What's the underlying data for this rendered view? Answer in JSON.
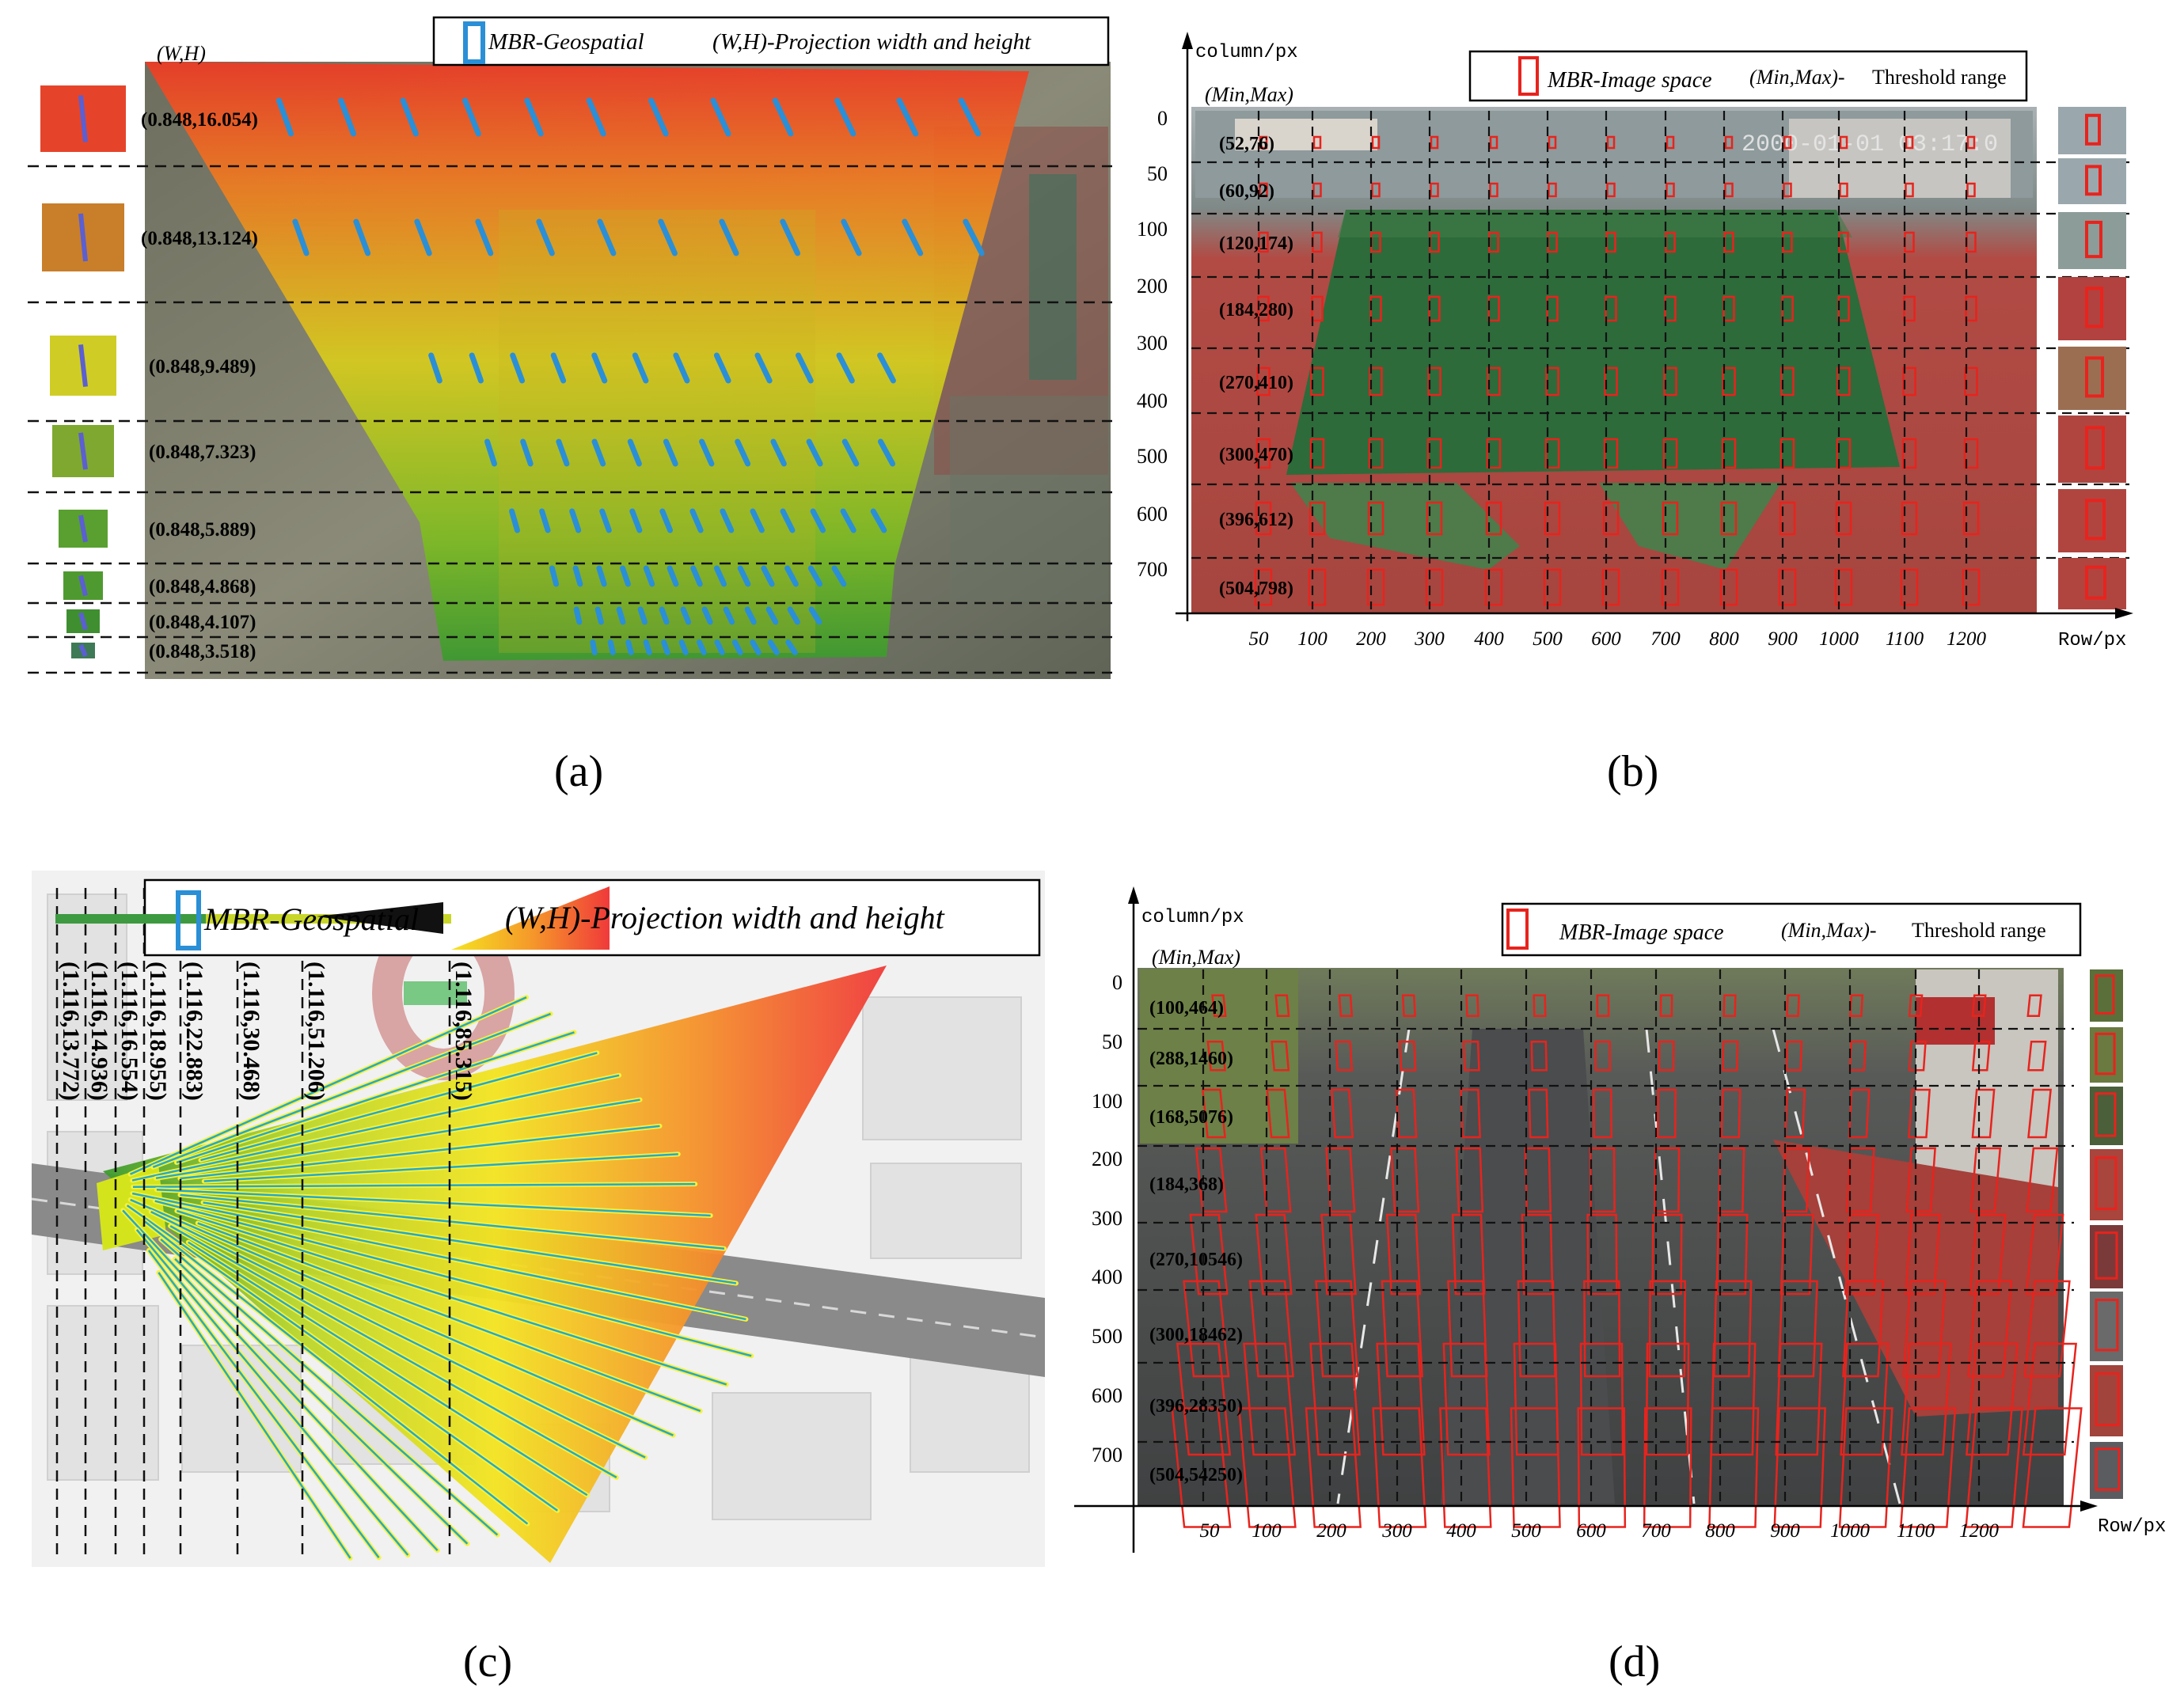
{
  "panel_a": {
    "caption": "(a)",
    "legend_mbr": "MBR-Geospatial",
    "legend_wh": "(W,H)-Projection width and height",
    "header": "(W,H)",
    "rows": [
      "(0.848,16.054)",
      "(0.848,13.124)",
      "(0.848,9.489)",
      "(0.848,7.323)",
      "(0.848,5.889)",
      "(0.848,4.868)",
      "(0.848,4.107)",
      "(0.848,3.518)"
    ]
  },
  "panel_b": {
    "caption": "(b)",
    "y_axis_title": "column/px",
    "x_axis_title": "Row/px",
    "header": "(Min,Max)",
    "legend_mbr": "MBR-Image space",
    "legend_range_a": "(Min,Max)-",
    "legend_range_b": "Threshold range",
    "timestamp": "2000-01-01 03:17:0",
    "y_ticks": [
      "0",
      "50",
      "100",
      "200",
      "300",
      "400",
      "500",
      "600",
      "700"
    ],
    "x_ticks": [
      "50",
      "100",
      "200",
      "300",
      "400",
      "500",
      "600",
      "700",
      "800",
      "900",
      "1000",
      "1100",
      "1200"
    ],
    "rows": [
      "(52,76)",
      "(60,92)",
      "(120,174)",
      "(184,280)",
      "(270,410)",
      "(300,470)",
      "(396,612)",
      "(504,798)"
    ]
  },
  "panel_c": {
    "caption": "(c)",
    "legend_mbr": "MBR-Geospatial",
    "legend_wh": "(W,H)-Projection width and height",
    "cols": [
      "(1.116,13.772)",
      "(1.116,14.936)",
      "(1.116,16.554)",
      "(1.116,18.955)",
      "(1.116,22.883)",
      "(1.116,30.468)",
      "(1.116,51.206)",
      "(1.116,85.315)"
    ]
  },
  "panel_d": {
    "caption": "(d)",
    "y_axis_title": "column/px",
    "x_axis_title": "Row/px",
    "header": "(Min,Max)",
    "legend_mbr": "MBR-Image space",
    "legend_range_a": "(Min,Max)-",
    "legend_range_b": "Threshold range",
    "y_ticks": [
      "0",
      "50",
      "100",
      "200",
      "300",
      "400",
      "500",
      "600",
      "700"
    ],
    "x_ticks": [
      "50",
      "100",
      "200",
      "300",
      "400",
      "500",
      "600",
      "700",
      "800",
      "900",
      "1000",
      "1100",
      "1200"
    ],
    "rows": [
      "(100,464)",
      "(288,1460)",
      "(168,5076)",
      "(184,368)",
      "(270,10546)",
      "(300,18462)",
      "(396,28350)",
      "(504,54250)"
    ]
  },
  "colors": {
    "mbr_blue": "#2a8fd6",
    "mbr_red": "#e8231d",
    "field_green": "#2d6b3a",
    "track_red": "#b5433d",
    "heat_red": "#e8312a",
    "heat_yellow": "#e8e020",
    "heat_green": "#4fa82e"
  }
}
